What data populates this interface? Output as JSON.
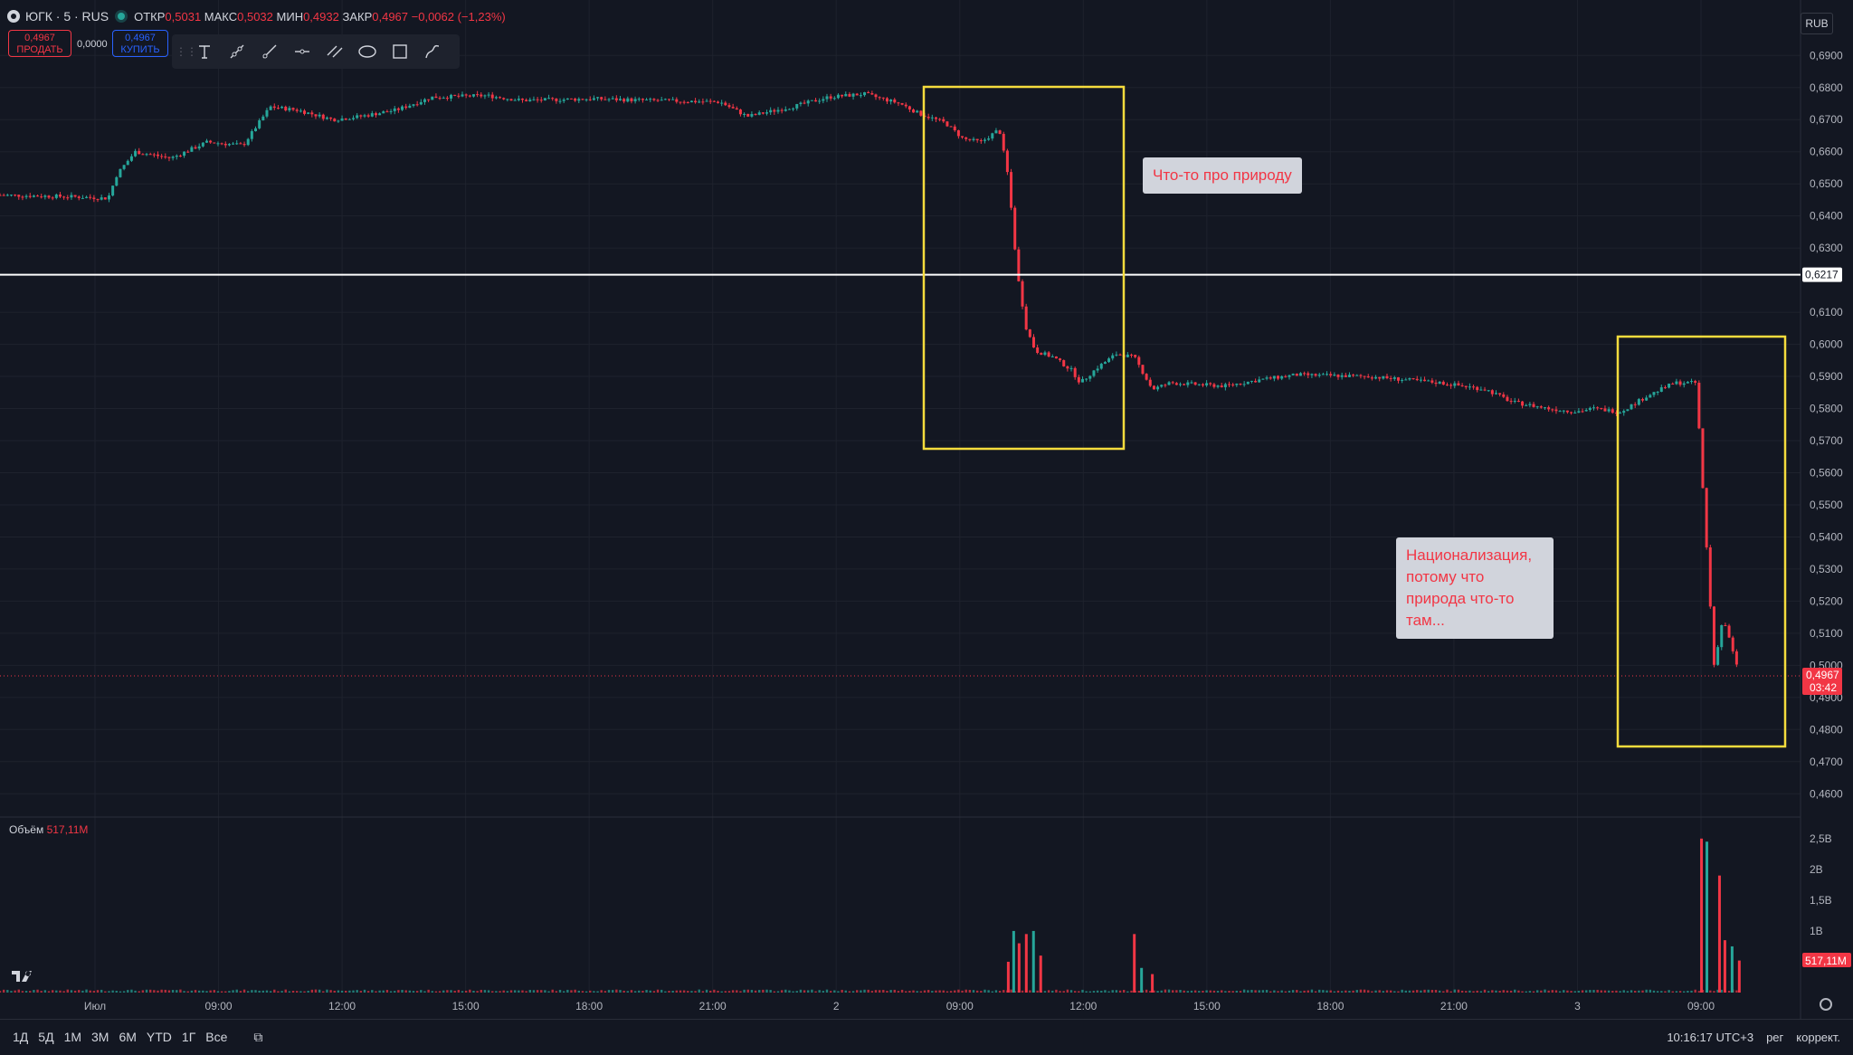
{
  "header": {
    "symbol": "ЮГК · 5 · RUS",
    "open_label": "ОТКР",
    "open": "0,5031",
    "high_label": "МАКС",
    "high": "0,5032",
    "low_label": "МИН",
    "low": "0,4932",
    "close_label": "ЗАКР",
    "close": "0,4967",
    "change": "−0,0062 (−1,23%)"
  },
  "trade": {
    "sell_price": "0,4967",
    "sell_label": "ПРОДАТЬ",
    "spread": "0,0000",
    "buy_price": "0,4967",
    "buy_label": "КУПИТЬ"
  },
  "currency": "RUB",
  "annotations": {
    "box1_text": "Что-то про природу",
    "box2_text": "Национализация, потому что природа что-то там..."
  },
  "volume_legend": {
    "label": "Объём",
    "value": "517,11M"
  },
  "bottom": {
    "ranges": [
      "1Д",
      "5Д",
      "1М",
      "3М",
      "6М",
      "YTD",
      "1Г",
      "Все"
    ],
    "time": "10:16:17 UTC+3",
    "session": "рег",
    "adjust": "коррект."
  },
  "colors": {
    "up": "#26a69a",
    "down": "#f23645",
    "background": "#131722",
    "grid": "#1e222d",
    "highlight_box": "#f5dc3d",
    "hline": "#ffffff"
  },
  "icons": [
    "text-tool-icon",
    "trend-line-icon",
    "ray-icon",
    "horizontal-line-icon",
    "parallel-channel-icon",
    "ellipse-icon",
    "rectangle-icon",
    "path-icon"
  ],
  "chart_data": {
    "type": "candlestick",
    "timeframe": "5",
    "x_tick_labels": [
      "Июл",
      "09:00",
      "12:00",
      "15:00",
      "18:00",
      "21:00",
      "2",
      "09:00",
      "12:00",
      "15:00",
      "18:00",
      "21:00",
      "3",
      "09:00"
    ],
    "y_tick_labels": [
      "0,6900",
      "0,6800",
      "0,6700",
      "0,6600",
      "0,6500",
      "0,6400",
      "0,6300",
      "0,6100",
      "0,6000",
      "0,5900",
      "0,5800",
      "0,5700",
      "0,5600",
      "0,5500",
      "0,5400",
      "0,5300",
      "0,5200",
      "0,5100",
      "0,5000",
      "0,4900",
      "0,4800",
      "0,4700",
      "0,4600"
    ],
    "ylim": [
      0.455,
      0.696
    ],
    "horizontal_line": {
      "value": 0.6217,
      "label": "0,6217"
    },
    "last_price": {
      "value": 0.4967,
      "label": "0,4967",
      "countdown": "03:42"
    },
    "price_path": [
      {
        "t": 0.0,
        "p": 0.6465
      },
      {
        "t": 0.04,
        "p": 0.646
      },
      {
        "t": 0.06,
        "p": 0.6455
      },
      {
        "t": 0.065,
        "p": 0.653
      },
      {
        "t": 0.075,
        "p": 0.66
      },
      {
        "t": 0.095,
        "p": 0.658
      },
      {
        "t": 0.115,
        "p": 0.663
      },
      {
        "t": 0.135,
        "p": 0.662
      },
      {
        "t": 0.145,
        "p": 0.67
      },
      {
        "t": 0.15,
        "p": 0.674
      },
      {
        "t": 0.165,
        "p": 0.673
      },
      {
        "t": 0.185,
        "p": 0.67
      },
      {
        "t": 0.2,
        "p": 0.671
      },
      {
        "t": 0.22,
        "p": 0.673
      },
      {
        "t": 0.24,
        "p": 0.677
      },
      {
        "t": 0.27,
        "p": 0.6775
      },
      {
        "t": 0.29,
        "p": 0.676
      },
      {
        "t": 0.33,
        "p": 0.6765
      },
      {
        "t": 0.36,
        "p": 0.676
      },
      {
        "t": 0.4,
        "p": 0.6755
      },
      {
        "t": 0.415,
        "p": 0.671
      },
      {
        "t": 0.44,
        "p": 0.674
      },
      {
        "t": 0.46,
        "p": 0.677
      },
      {
        "t": 0.48,
        "p": 0.678
      },
      {
        "t": 0.5,
        "p": 0.675
      },
      {
        "t": 0.51,
        "p": 0.672
      },
      {
        "t": 0.525,
        "p": 0.669
      },
      {
        "t": 0.535,
        "p": 0.664
      },
      {
        "t": 0.545,
        "p": 0.663
      },
      {
        "t": 0.555,
        "p": 0.667
      },
      {
        "t": 0.56,
        "p": 0.652
      },
      {
        "t": 0.565,
        "p": 0.622
      },
      {
        "t": 0.57,
        "p": 0.605
      },
      {
        "t": 0.575,
        "p": 0.598
      },
      {
        "t": 0.585,
        "p": 0.596
      },
      {
        "t": 0.595,
        "p": 0.592
      },
      {
        "t": 0.6,
        "p": 0.588
      },
      {
        "t": 0.61,
        "p": 0.593
      },
      {
        "t": 0.62,
        "p": 0.597
      },
      {
        "t": 0.63,
        "p": 0.596
      },
      {
        "t": 0.64,
        "p": 0.586
      },
      {
        "t": 0.65,
        "p": 0.588
      },
      {
        "t": 0.68,
        "p": 0.587
      },
      {
        "t": 0.7,
        "p": 0.589
      },
      {
        "t": 0.72,
        "p": 0.5905
      },
      {
        "t": 0.76,
        "p": 0.59
      },
      {
        "t": 0.8,
        "p": 0.588
      },
      {
        "t": 0.825,
        "p": 0.586
      },
      {
        "t": 0.84,
        "p": 0.582
      },
      {
        "t": 0.86,
        "p": 0.58
      },
      {
        "t": 0.875,
        "p": 0.579
      },
      {
        "t": 0.885,
        "p": 0.58
      },
      {
        "t": 0.9,
        "p": 0.579
      },
      {
        "t": 0.915,
        "p": 0.584
      },
      {
        "t": 0.93,
        "p": 0.588
      },
      {
        "t": 0.942,
        "p": 0.588
      },
      {
        "t": 0.948,
        "p": 0.535
      },
      {
        "t": 0.952,
        "p": 0.5
      },
      {
        "t": 0.957,
        "p": 0.515
      },
      {
        "t": 0.962,
        "p": 0.505
      },
      {
        "t": 0.966,
        "p": 0.4967
      }
    ],
    "volume": {
      "y_tick_labels": [
        "2,5B",
        "2B",
        "1,5B",
        "1B"
      ],
      "ylim": [
        0,
        2.6
      ],
      "spikes": [
        {
          "t": 0.56,
          "v": 0.5
        },
        {
          "t": 0.563,
          "v": 1.0
        },
        {
          "t": 0.566,
          "v": 0.8
        },
        {
          "t": 0.57,
          "v": 0.95
        },
        {
          "t": 0.574,
          "v": 1.0
        },
        {
          "t": 0.578,
          "v": 0.6
        },
        {
          "t": 0.63,
          "v": 0.95
        },
        {
          "t": 0.634,
          "v": 0.4
        },
        {
          "t": 0.64,
          "v": 0.3
        },
        {
          "t": 0.945,
          "v": 2.5
        },
        {
          "t": 0.948,
          "v": 2.45
        },
        {
          "t": 0.955,
          "v": 1.9
        },
        {
          "t": 0.958,
          "v": 0.85
        },
        {
          "t": 0.962,
          "v": 0.75
        },
        {
          "t": 0.966,
          "v": 0.52
        }
      ],
      "last_label": "517,11M"
    }
  }
}
